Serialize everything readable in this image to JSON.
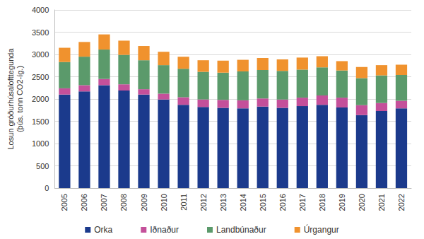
{
  "chart_data": {
    "type": "bar",
    "stacked": true,
    "ylabel": "Losun gróðurhúsalofttegunda (þús. tonn CO2-íg.)",
    "categories": [
      "2005",
      "2006",
      "2007",
      "2008",
      "2009",
      "2010",
      "2011",
      "2012",
      "2013",
      "2014",
      "2015",
      "2016",
      "2017",
      "2018",
      "2019",
      "2020",
      "2021",
      "2022"
    ],
    "series": [
      {
        "name": "Orka",
        "color": "#1b3a8c",
        "values": [
          2100,
          2170,
          2310,
          2190,
          2100,
          1990,
          1870,
          1820,
          1800,
          1790,
          1830,
          1800,
          1840,
          1870,
          1810,
          1640,
          1730,
          1790
        ]
      },
      {
        "name": "Iðnaður",
        "color": "#c4509a",
        "values": [
          140,
          140,
          140,
          140,
          120,
          130,
          170,
          170,
          180,
          180,
          180,
          190,
          190,
          210,
          220,
          220,
          180,
          170
        ]
      },
      {
        "name": "Landbúnaður",
        "color": "#5b9a6b",
        "values": [
          590,
          640,
          660,
          660,
          650,
          640,
          640,
          620,
          610,
          650,
          640,
          640,
          630,
          630,
          610,
          610,
          620,
          580
        ]
      },
      {
        "name": "Úrgangur",
        "color": "#f0922e",
        "values": [
          320,
          330,
          340,
          320,
          320,
          300,
          270,
          260,
          270,
          260,
          270,
          260,
          270,
          250,
          210,
          250,
          230,
          230
        ]
      }
    ],
    "ylim": [
      0,
      4000
    ],
    "yticks": [
      0,
      500,
      1000,
      1500,
      2000,
      2500,
      3000,
      3500,
      4000
    ],
    "grid": true,
    "legend": "bottom"
  }
}
